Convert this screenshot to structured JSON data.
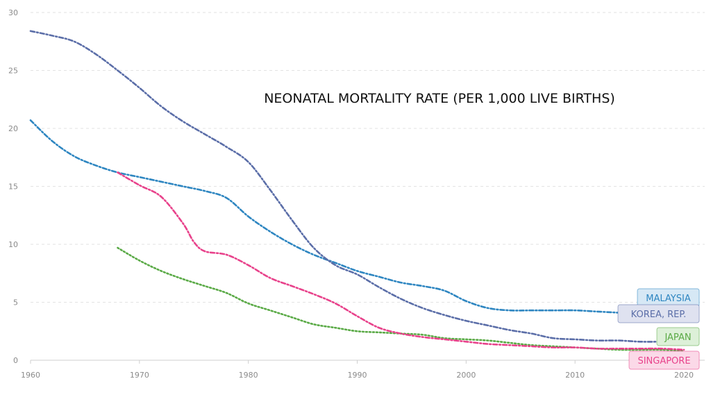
{
  "chart_data": {
    "type": "line",
    "title": "NEONATAL MORTALITY RATE (PER 1,000 LIVE BIRTHS)",
    "xlabel": "",
    "ylabel": "",
    "xlim": [
      1960,
      2020
    ],
    "ylim": [
      0,
      30
    ],
    "x_ticks": [
      1960,
      1970,
      1980,
      1990,
      2000,
      2010,
      2020
    ],
    "y_ticks": [
      0,
      5,
      10,
      15,
      20,
      25,
      30
    ],
    "grid": "horizontal dashed",
    "legend_placement": "right (labels at line ends)",
    "series": [
      {
        "name": "MALAYSIA",
        "color": "#2e86c1",
        "fill": "#d6e8f5",
        "style": "dash-dot",
        "x": [
          1960,
          1962,
          1964,
          1966,
          1968,
          1970,
          1972,
          1974,
          1976,
          1978,
          1980,
          1982,
          1984,
          1986,
          1988,
          1990,
          1992,
          1994,
          1996,
          1998,
          2000,
          2002,
          2004,
          2006,
          2008,
          2010,
          2012,
          2014
        ],
        "y": [
          20.7,
          18.9,
          17.6,
          16.8,
          16.2,
          15.8,
          15.4,
          15.0,
          14.6,
          14.0,
          12.4,
          11.1,
          10.0,
          9.1,
          8.4,
          7.7,
          7.2,
          6.7,
          6.4,
          6.0,
          5.1,
          4.5,
          4.3,
          4.3,
          4.3,
          4.3,
          4.2,
          4.1
        ]
      },
      {
        "name": "KOREA, REP.",
        "color": "#5b6ea8",
        "fill": "#dfe2f0",
        "style": "dash-dot",
        "x": [
          1960,
          1962,
          1964,
          1966,
          1968,
          1970,
          1972,
          1974,
          1976,
          1978,
          1980,
          1982,
          1984,
          1986,
          1988,
          1990,
          1992,
          1994,
          1996,
          1998,
          2000,
          2002,
          2004,
          2006,
          2008,
          2010,
          2012,
          2014,
          2016,
          2018
        ],
        "y": [
          28.4,
          28.0,
          27.5,
          26.4,
          25.0,
          23.5,
          21.9,
          20.6,
          19.5,
          18.4,
          17.1,
          14.7,
          12.1,
          9.7,
          8.2,
          7.4,
          6.3,
          5.3,
          4.5,
          3.9,
          3.4,
          3.0,
          2.6,
          2.3,
          1.9,
          1.8,
          1.7,
          1.7,
          1.6,
          1.6
        ]
      },
      {
        "name": "JAPAN",
        "color": "#5aaa46",
        "fill": "#ddf0d8",
        "style": "dotted",
        "x": [
          1968,
          1970,
          1972,
          1974,
          1976,
          1978,
          1980,
          1982,
          1984,
          1986,
          1988,
          1990,
          1992,
          1994,
          1996,
          1998,
          2000,
          2002,
          2004,
          2006,
          2008,
          2010,
          2012,
          2014,
          2016,
          2018,
          2020
        ],
        "y": [
          9.7,
          8.6,
          7.7,
          7.0,
          6.4,
          5.8,
          4.9,
          4.3,
          3.7,
          3.1,
          2.8,
          2.5,
          2.4,
          2.3,
          2.2,
          1.9,
          1.8,
          1.7,
          1.5,
          1.3,
          1.2,
          1.1,
          1.0,
          0.9,
          0.9,
          0.9,
          0.8
        ]
      },
      {
        "name": "SINGAPORE",
        "color": "#e8428b",
        "fill": "#fbd9e8",
        "style": "dash-dot",
        "x": [
          1968,
          1970,
          1972,
          1974,
          1975,
          1976,
          1978,
          1980,
          1982,
          1984,
          1986,
          1988,
          1990,
          1992,
          1994,
          1996,
          1998,
          2000,
          2002,
          2004,
          2006,
          2008,
          2010,
          2012,
          2014,
          2016,
          2018,
          2020
        ],
        "y": [
          16.2,
          15.1,
          14.1,
          11.8,
          10.2,
          9.4,
          9.1,
          8.2,
          7.1,
          6.4,
          5.7,
          4.9,
          3.8,
          2.8,
          2.3,
          2.0,
          1.8,
          1.6,
          1.4,
          1.3,
          1.2,
          1.1,
          1.1,
          1.0,
          1.0,
          1.0,
          1.0,
          0.9
        ]
      }
    ]
  }
}
